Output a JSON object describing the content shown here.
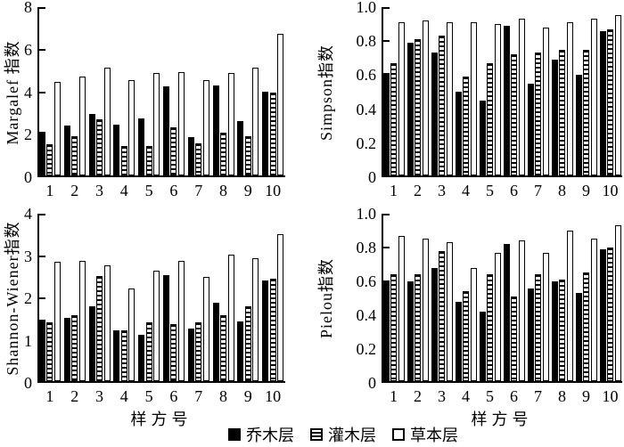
{
  "figure": {
    "xlabel": "样方号",
    "legend": {
      "items": [
        {
          "label": "乔木层",
          "pattern": "solid"
        },
        {
          "label": "灌木层",
          "pattern": "hstripe"
        },
        {
          "label": "草本层",
          "pattern": "open"
        }
      ]
    },
    "colors": {
      "bar_fill": "#000000",
      "bar_open": "#ffffff",
      "axis": "#000000"
    }
  },
  "chart_data": [
    {
      "type": "bar",
      "id": "margalef",
      "title": "",
      "ylabel": "Margalef 指数",
      "xlabel": "",
      "ylim": [
        0,
        8
      ],
      "yticks": [
        "0",
        "2",
        "4",
        "6",
        "8"
      ],
      "grid": false,
      "categories": [
        "1",
        "2",
        "3",
        "4",
        "5",
        "6",
        "7",
        "8",
        "9",
        "10"
      ],
      "series": [
        {
          "name": "乔木层",
          "pattern": "solid",
          "values": [
            2.05,
            2.35,
            2.9,
            2.4,
            2.7,
            4.2,
            1.8,
            4.25,
            2.55,
            3.95
          ]
        },
        {
          "name": "灌木层",
          "pattern": "hstripe",
          "values": [
            1.45,
            1.85,
            2.65,
            1.4,
            1.4,
            2.25,
            1.5,
            2.0,
            1.85,
            3.9
          ]
        },
        {
          "name": "草本层",
          "pattern": "open",
          "values": [
            4.4,
            4.65,
            5.05,
            4.5,
            4.8,
            4.85,
            4.5,
            4.8,
            5.05,
            6.65
          ]
        }
      ]
    },
    {
      "type": "bar",
      "id": "simpson",
      "title": "",
      "ylabel": "Simpson指数",
      "xlabel": "",
      "ylim": [
        0,
        1.0
      ],
      "yticks": [
        "0",
        "0.2",
        "0.4",
        "0.6",
        "0.8",
        "1.0"
      ],
      "grid": false,
      "categories": [
        "1",
        "2",
        "3",
        "4",
        "5",
        "6",
        "7",
        "8",
        "9",
        "10"
      ],
      "series": [
        {
          "name": "乔木层",
          "pattern": "solid",
          "values": [
            0.6,
            0.78,
            0.72,
            0.49,
            0.44,
            0.88,
            0.54,
            0.68,
            0.59,
            0.85
          ]
        },
        {
          "name": "灌木层",
          "pattern": "hstripe",
          "values": [
            0.66,
            0.8,
            0.82,
            0.58,
            0.66,
            0.71,
            0.72,
            0.74,
            0.74,
            0.86
          ]
        },
        {
          "name": "草本层",
          "pattern": "open",
          "values": [
            0.9,
            0.91,
            0.9,
            0.9,
            0.89,
            0.92,
            0.87,
            0.9,
            0.92,
            0.94
          ]
        }
      ]
    },
    {
      "type": "bar",
      "id": "shannon_wiener",
      "title": "",
      "ylabel": "Shannon-Wiener指数",
      "xlabel": "样方号",
      "ylim": [
        0,
        4
      ],
      "yticks": [
        "0",
        "1",
        "2",
        "3",
        "4"
      ],
      "grid": false,
      "categories": [
        "1",
        "2",
        "3",
        "4",
        "5",
        "6",
        "7",
        "8",
        "9",
        "10"
      ],
      "series": [
        {
          "name": "乔木层",
          "pattern": "solid",
          "values": [
            1.45,
            1.5,
            1.77,
            1.19,
            1.1,
            2.51,
            1.25,
            1.86,
            1.41,
            2.37
          ]
        },
        {
          "name": "灌木层",
          "pattern": "hstripe",
          "values": [
            1.38,
            1.55,
            2.48,
            1.19,
            1.38,
            1.35,
            1.38,
            1.56,
            1.77,
            2.42
          ]
        },
        {
          "name": "草本层",
          "pattern": "open",
          "values": [
            2.83,
            2.85,
            2.74,
            2.18,
            2.62,
            2.85,
            2.47,
            3.0,
            2.91,
            3.47
          ]
        }
      ]
    },
    {
      "type": "bar",
      "id": "pielou",
      "title": "",
      "ylabel": "Pielou指数",
      "xlabel": "样方号",
      "ylim": [
        0,
        1.0
      ],
      "yticks": [
        "0",
        "0.2",
        "0.4",
        "0.6",
        "0.8",
        "1.0"
      ],
      "grid": false,
      "categories": [
        "1",
        "2",
        "3",
        "4",
        "5",
        "6",
        "7",
        "8",
        "9",
        "10"
      ],
      "series": [
        {
          "name": "乔木层",
          "pattern": "solid",
          "values": [
            0.59,
            0.59,
            0.67,
            0.47,
            0.41,
            0.81,
            0.55,
            0.59,
            0.52,
            0.78
          ]
        },
        {
          "name": "灌木层",
          "pattern": "hstripe",
          "values": [
            0.63,
            0.63,
            0.77,
            0.53,
            0.63,
            0.5,
            0.63,
            0.6,
            0.64,
            0.79
          ]
        },
        {
          "name": "草本层",
          "pattern": "open",
          "values": [
            0.86,
            0.84,
            0.82,
            0.67,
            0.76,
            0.83,
            0.76,
            0.89,
            0.84,
            0.92
          ]
        }
      ]
    }
  ]
}
